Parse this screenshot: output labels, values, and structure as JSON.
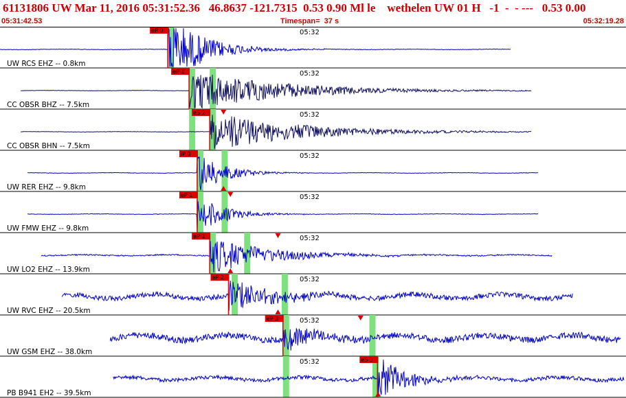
{
  "header": {
    "title": "61131806 UW Mar 11, 2016 05:31:52.36   46.8637 -121.7315  0.53 0.90 Ml le    wethelen UW 01 H   -1  -  - ---   0.53 0.00",
    "start_time": "05:31:42.53",
    "timespan": "Timespan=  37 s",
    "end_time": "05:32:19.28"
  },
  "time_tick": "05:32",
  "colors": {
    "trace_blue": "#0000cc",
    "trace_dark": "#101060",
    "pick_red": "#dd0000",
    "window_green": "#7fe07f",
    "divider": "#000000"
  },
  "panels": [
    {
      "label": "UW RCS EHZ -- 0.8km",
      "pick": "eP 0",
      "color": "blue",
      "start": 0.0,
      "end": 0.816,
      "onset": 0.268,
      "amp": 0.9,
      "noise": 0.02,
      "dur": 0.12,
      "greens": [
        0.268
      ],
      "tri_up": null,
      "tri_down": null
    },
    {
      "label": "CC OBSR BHZ -- 7.5km",
      "pick": "eP 1",
      "color": "dark",
      "start": 0.033,
      "end": 0.849,
      "onset": 0.302,
      "amp": 0.55,
      "noise": 0.015,
      "dur": 0.3,
      "greens": [
        0.302,
        0.335
      ],
      "tri_up": null,
      "tri_down": null
    },
    {
      "label": "CC OBSR BHN -- 7.5km",
      "pick": "eS 2",
      "color": "dark",
      "start": 0.033,
      "end": 0.849,
      "onset": 0.335,
      "amp": 0.5,
      "noise": 0.015,
      "dur": 0.3,
      "greens": [
        0.302,
        0.335
      ],
      "tri_up": null,
      "tri_down": 0.357
    },
    {
      "label": "UW RER EHZ -- 9.8km",
      "pick": "iP 0",
      "color": "blue",
      "start": 0.044,
      "end": 0.86,
      "onset": 0.315,
      "amp": 0.55,
      "noise": 0.02,
      "dur": 0.09,
      "greens": [
        0.315,
        0.354
      ],
      "tri_up": 0.357,
      "tri_down": null
    },
    {
      "label": "UW FMW EHZ -- 9.8km",
      "pick": "eP 1",
      "color": "blue",
      "start": 0.044,
      "end": 0.86,
      "onset": 0.315,
      "amp": 0.5,
      "noise": 0.02,
      "dur": 0.09,
      "greens": [
        0.315,
        0.354
      ],
      "tri_up": null,
      "tri_down": 0.368
    },
    {
      "label": "UW LO2 EHZ -- 13.9km",
      "pick": "eP 1",
      "color": "blue",
      "start": 0.066,
      "end": 0.882,
      "onset": 0.335,
      "amp": 0.45,
      "noise": 0.05,
      "dur": 0.2,
      "greens": [
        0.335,
        0.39
      ],
      "tri_up": 0.368,
      "tri_down": 0.444
    },
    {
      "label": "UW RVC EHZ -- 20.5km",
      "pick": "eP 2",
      "color": "blue",
      "start": 0.099,
      "end": 0.915,
      "onset": 0.365,
      "amp": 0.4,
      "noise": 0.2,
      "dur": 0.15,
      "greens": [
        0.37,
        0.45
      ],
      "tri_up": 0.444,
      "tri_down": null
    },
    {
      "label": "UW GSM EHZ -- 38.0km",
      "pick": "eP 3",
      "color": "blue",
      "start": 0.176,
      "end": 0.992,
      "onset": 0.452,
      "amp": 0.35,
      "noise": 0.25,
      "dur": 0.1,
      "greens": [
        0.452,
        0.59
      ],
      "tri_up": null,
      "tri_down": 0.576
    },
    {
      "label": "PB B941 EH2 -- 39.5km",
      "pick": "eS 3",
      "color": "blue",
      "start": 0.181,
      "end": 0.997,
      "onset": 0.603,
      "amp": 0.55,
      "noise": 0.15,
      "dur": 0.1,
      "greens": [
        0.452,
        0.595
      ],
      "tri_up": 0.604,
      "tri_down": null
    }
  ]
}
